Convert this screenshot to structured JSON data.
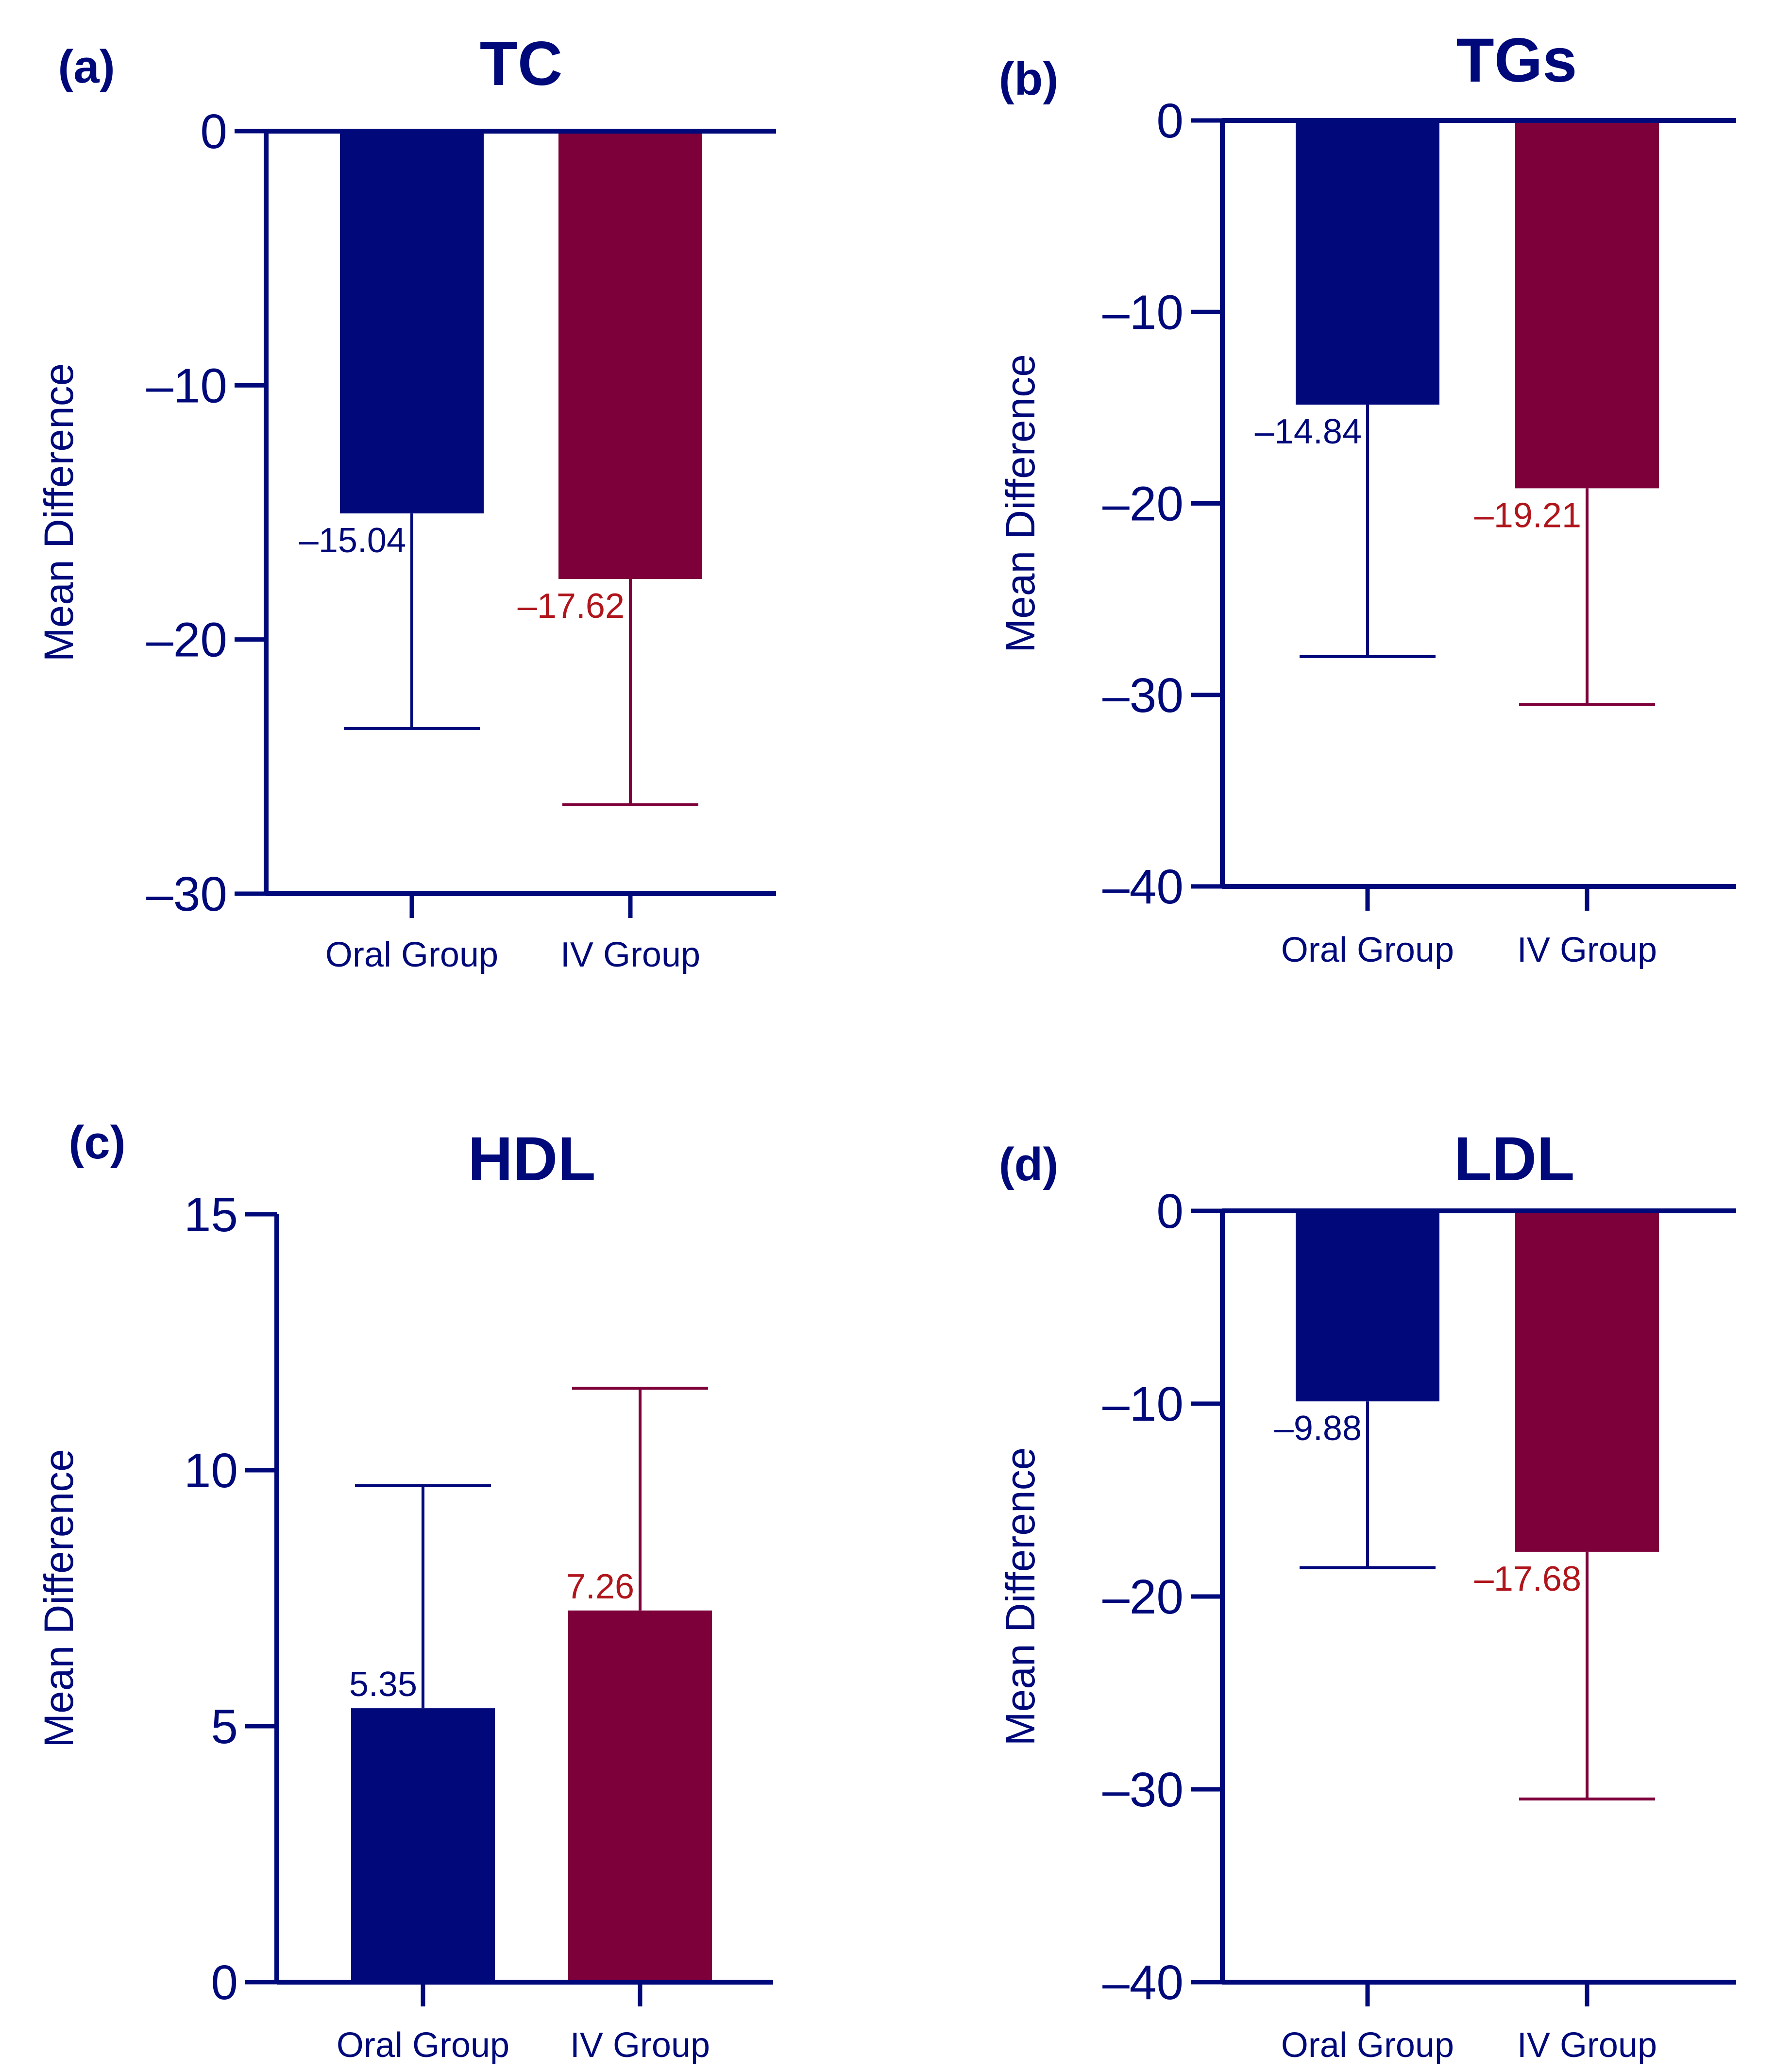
{
  "colors": {
    "axis": "#00097A",
    "oral": "#00087A",
    "iv": "#7D003A",
    "iv_label": "#B0151C"
  },
  "chart_data": [
    {
      "type": "bar",
      "panel": "(a)",
      "title": "TC",
      "ylabel": "Mean Difference",
      "categories": [
        "Oral Group",
        "IV Group"
      ],
      "values": [
        -15.04,
        -17.62
      ],
      "error_ends": [
        -23.5,
        -26.5
      ],
      "value_labels": [
        "–15.04",
        "–17.62"
      ],
      "ylim": [
        -30,
        0
      ],
      "yticks": [
        0,
        -10,
        -20,
        -30
      ],
      "ytick_labels": [
        "0",
        "–10",
        "–20",
        "–30"
      ]
    },
    {
      "type": "bar",
      "panel": "(b)",
      "title": "TGs",
      "ylabel": "Mean Difference",
      "categories": [
        "Oral Group",
        "IV Group"
      ],
      "values": [
        -14.84,
        -19.21
      ],
      "error_ends": [
        -28.0,
        -30.5
      ],
      "value_labels": [
        "–14.84",
        "–19.21"
      ],
      "ylim": [
        -40,
        0
      ],
      "yticks": [
        0,
        -10,
        -20,
        -30,
        -40
      ],
      "ytick_labels": [
        "0",
        "–10",
        "–20",
        "–30",
        "–40"
      ]
    },
    {
      "type": "bar",
      "panel": "(c)",
      "title": "HDL",
      "ylabel": "Mean Difference",
      "categories": [
        "Oral Group",
        "IV Group"
      ],
      "values": [
        5.35,
        7.26
      ],
      "error_ends": [
        9.7,
        11.6
      ],
      "value_labels": [
        "5.35",
        "7.26"
      ],
      "ylim": [
        0,
        15
      ],
      "yticks": [
        0,
        5,
        10,
        15
      ],
      "ytick_labels": [
        "0",
        "5",
        "10",
        "15"
      ]
    },
    {
      "type": "bar",
      "panel": "(d)",
      "title": "LDL",
      "ylabel": "Mean Difference",
      "categories": [
        "Oral Group",
        "IV Group"
      ],
      "values": [
        -9.88,
        -17.68
      ],
      "error_ends": [
        -18.5,
        -30.5
      ],
      "value_labels": [
        "–9.88",
        "–17.68"
      ],
      "ylim": [
        -40,
        0
      ],
      "yticks": [
        0,
        -10,
        -20,
        -30,
        -40
      ],
      "ytick_labels": [
        "0",
        "–10",
        "–20",
        "–30",
        "–40"
      ]
    }
  ]
}
